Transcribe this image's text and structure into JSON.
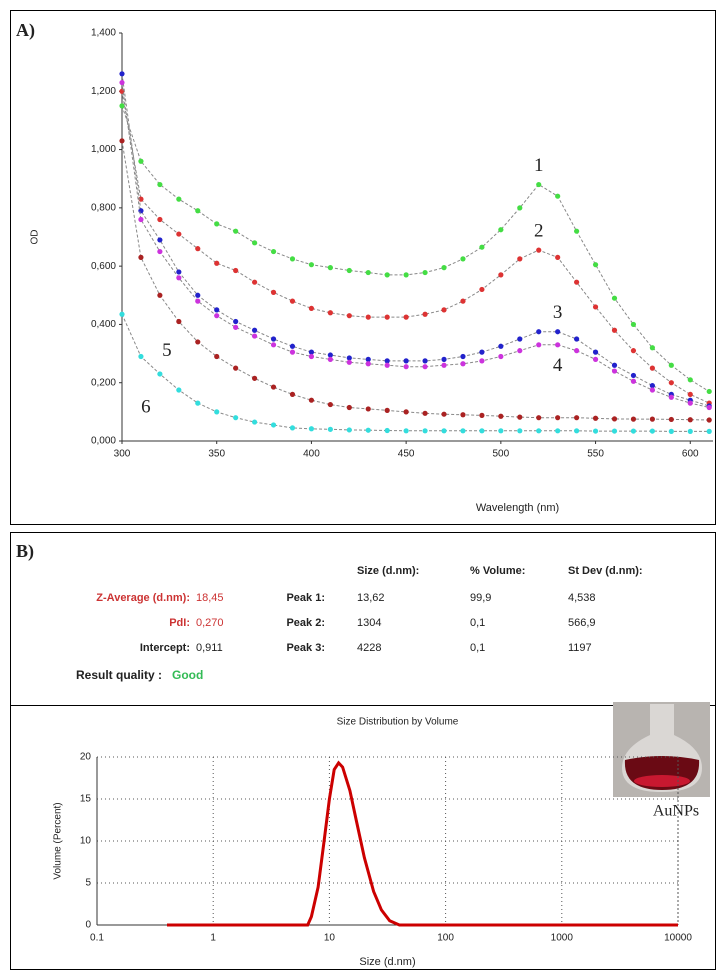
{
  "panels": [
    "A)",
    "B)"
  ],
  "chart_data": [
    {
      "type": "line",
      "x_label": "Wavelength (nm)",
      "y_label": "OD",
      "x": [
        300,
        310,
        320,
        330,
        340,
        350,
        360,
        370,
        380,
        390,
        400,
        410,
        420,
        430,
        440,
        450,
        460,
        470,
        480,
        490,
        500,
        510,
        520,
        530,
        540,
        550,
        560,
        570,
        580,
        590,
        600,
        610
      ],
      "series": [
        {
          "name": "1",
          "color": "#44dd44",
          "values": [
            1150,
            960,
            880,
            830,
            790,
            745,
            720,
            680,
            650,
            625,
            605,
            595,
            585,
            578,
            570,
            570,
            578,
            595,
            625,
            665,
            725,
            800,
            880,
            840,
            720,
            605,
            490,
            400,
            320,
            260,
            210,
            170
          ]
        },
        {
          "name": "2",
          "color": "#dd3333",
          "values": [
            1200,
            830,
            760,
            710,
            660,
            610,
            585,
            545,
            510,
            480,
            455,
            440,
            430,
            425,
            425,
            425,
            435,
            450,
            480,
            520,
            570,
            625,
            655,
            630,
            545,
            460,
            380,
            310,
            250,
            200,
            160,
            130
          ]
        },
        {
          "name": "3",
          "color": "#2222cc",
          "values": [
            1260,
            790,
            690,
            580,
            500,
            450,
            410,
            380,
            350,
            325,
            305,
            295,
            285,
            280,
            275,
            275,
            275,
            280,
            290,
            305,
            325,
            350,
            375,
            375,
            350,
            305,
            260,
            225,
            190,
            160,
            140,
            120
          ]
        },
        {
          "name": "4",
          "color": "#cc33dd",
          "values": [
            1230,
            760,
            650,
            560,
            480,
            430,
            390,
            360,
            330,
            305,
            290,
            280,
            270,
            265,
            260,
            255,
            255,
            260,
            265,
            275,
            290,
            310,
            330,
            330,
            310,
            280,
            240,
            205,
            175,
            150,
            130,
            115
          ]
        },
        {
          "name": "5",
          "color": "#aa2222",
          "values": [
            1030,
            630,
            500,
            410,
            340,
            290,
            250,
            215,
            185,
            160,
            140,
            125,
            115,
            110,
            105,
            100,
            95,
            92,
            90,
            88,
            85,
            82,
            80,
            80,
            80,
            78,
            76,
            75,
            75,
            74,
            73,
            72
          ]
        },
        {
          "name": "6",
          "color": "#33dddd",
          "values": [
            435,
            290,
            230,
            175,
            130,
            100,
            80,
            65,
            55,
            45,
            42,
            40,
            38,
            37,
            36,
            35,
            35,
            35,
            35,
            35,
            35,
            35,
            35,
            35,
            35,
            34,
            34,
            34,
            34,
            33,
            33,
            33
          ]
        }
      ],
      "xlim": [
        300,
        612
      ],
      "xticks": [
        300,
        350,
        400,
        450,
        500,
        550,
        600
      ],
      "ylim": [
        0,
        1400
      ],
      "yticks": [
        {
          "value": 0,
          "label": "0,000"
        },
        {
          "value": 200,
          "label": "0,200"
        },
        {
          "value": 400,
          "label": "0,400"
        },
        {
          "value": 600,
          "label": "0,600"
        },
        {
          "value": 800,
          "label": "0,800"
        },
        {
          "value": 1000,
          "label": "1,000"
        },
        {
          "value": 1200,
          "label": "1,200"
        },
        {
          "value": 1400,
          "label": "1,400"
        }
      ],
      "grid": false,
      "markers": true,
      "line_style": "dashed"
    },
    {
      "type": "line",
      "title": "Size Distribution by Volume",
      "x_label": "Size (d.nm)",
      "y_label": "Volume (Percent)",
      "x_scale": "log",
      "x": [
        0.4,
        6.5,
        7,
        8,
        9,
        10,
        11,
        12,
        13,
        15,
        17,
        20,
        24,
        28,
        33,
        40,
        10000
      ],
      "series": [
        {
          "color": "#cc0000",
          "values": [
            0,
            0,
            1,
            4.5,
            10,
            15,
            18.5,
            19.3,
            18.8,
            16,
            12.5,
            8,
            4,
            1.8,
            0.5,
            0,
            0
          ]
        }
      ],
      "xlim": [
        0.1,
        10000
      ],
      "xticks": [
        0.1,
        1,
        10,
        100,
        1000,
        10000
      ],
      "ylim": [
        0,
        20
      ],
      "yticks": [
        0,
        5,
        10,
        15,
        20
      ],
      "grid": true,
      "markers": false,
      "line_style": "solid"
    }
  ],
  "results": {
    "header": [
      "Size (d.nm):",
      "% Volume:",
      "St Dev (d.nm):"
    ],
    "summary": [
      [
        "Z-Average (d.nm):",
        "18,45"
      ],
      [
        "PdI:",
        "0,270"
      ],
      [
        "Intercept:",
        "0,911"
      ]
    ],
    "quality": [
      "Result quality :",
      "Good"
    ],
    "peaks": [
      [
        "Peak 1:",
        "13,62",
        "99,9",
        "4,538"
      ],
      [
        "Peak 2:",
        "1304",
        "0,1",
        "566,9"
      ],
      [
        "Peak 3:",
        "4228",
        "0,1",
        "1197"
      ]
    ]
  },
  "photo_caption": "AuNPs"
}
